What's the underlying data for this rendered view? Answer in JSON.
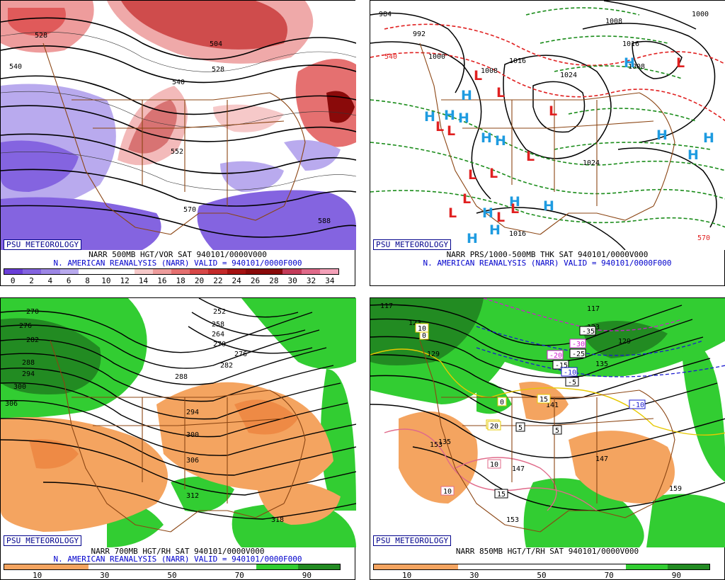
{
  "panels": [
    {
      "id": "p1",
      "badge": "PSU METEOROLOGY",
      "caption1": "NARR 500MB HGT/VOR SAT 940101/0000V000",
      "caption2": "N. AMERICAN REANALYSIS (NARR) VALID = 940101/0000F000",
      "colorbar": {
        "ticks": [
          "0",
          "2",
          "4",
          "6",
          "8",
          "10",
          "12",
          "14",
          "16",
          "18",
          "20",
          "22",
          "24",
          "26",
          "28",
          "30",
          "32",
          "34"
        ],
        "colors": [
          "#6a3fd8",
          "#8464e0",
          "#9d87e6",
          "#b9aaee",
          "#ffffff",
          "#ffffff",
          "#ffffff",
          "#f6c9c9",
          "#ee9c9c",
          "#e57070",
          "#d84848",
          "#c42a2a",
          "#a51212",
          "#8a0a0a",
          "#8a0a0a",
          "#c43c5a",
          "#e06a8a",
          "#f3a0b8"
        ]
      },
      "contour_labels": [
        "528",
        "540",
        "504",
        "528",
        "540",
        "552",
        "570",
        "588"
      ]
    },
    {
      "id": "p2",
      "badge": "PSU METEOROLOGY",
      "caption1": "NARR PRS/1000-500MB THK SAT 940101/0000V000",
      "caption2": "N. AMERICAN REANALYSIS (NARR) VALID = 940101/0000F000",
      "contour_labels": [
        "984",
        "992",
        "1000",
        "1008",
        "1016",
        "1024",
        "1008",
        "1016",
        "1024",
        "1016",
        "1000",
        "1008",
        "540",
        "570"
      ],
      "highs_label": "H",
      "lows_label": "L"
    },
    {
      "id": "p3",
      "badge": "PSU METEOROLOGY",
      "caption1": "NARR 700MB HGT/RH SAT 940101/0000V000",
      "caption2": "N. AMERICAN REANALYSIS (NARR) VALID = 940101/0000F000",
      "colorbar": {
        "ticks": [
          "10",
          "30",
          "50",
          "70",
          "90"
        ],
        "colors": [
          "#f4a460",
          "#f4a460",
          "#ffffff",
          "#ffffff",
          "#ffffff",
          "#ffffff",
          "#32cd32",
          "#228b22"
        ]
      },
      "contour_labels": [
        "270",
        "276",
        "282",
        "288",
        "294",
        "300",
        "306",
        "252",
        "258",
        "264",
        "270",
        "276",
        "282",
        "288",
        "294",
        "300",
        "306",
        "312",
        "318"
      ]
    },
    {
      "id": "p4",
      "badge": "PSU METEOROLOGY",
      "caption1": "NARR 850MB HGT/T/RH SAT 940101/0000V000",
      "colorbar": {
        "ticks": [
          "10",
          "30",
          "50",
          "70",
          "90"
        ],
        "colors": [
          "#f4a460",
          "#f4a460",
          "#ffffff",
          "#ffffff",
          "#ffffff",
          "#ffffff",
          "#32cd32",
          "#228b22"
        ]
      },
      "contour_labels": [
        "117",
        "123",
        "129",
        "117",
        "123",
        "129",
        "135",
        "135",
        "141",
        "147",
        "153",
        "147",
        "153",
        "159"
      ],
      "temp_labels": [
        "-35",
        "-30",
        "-25",
        "-20",
        "-15",
        "-10",
        "-5",
        "-10",
        "0",
        "0",
        "5",
        "5",
        "10",
        "10",
        "15",
        "10",
        "15",
        "20",
        "10"
      ]
    }
  ]
}
